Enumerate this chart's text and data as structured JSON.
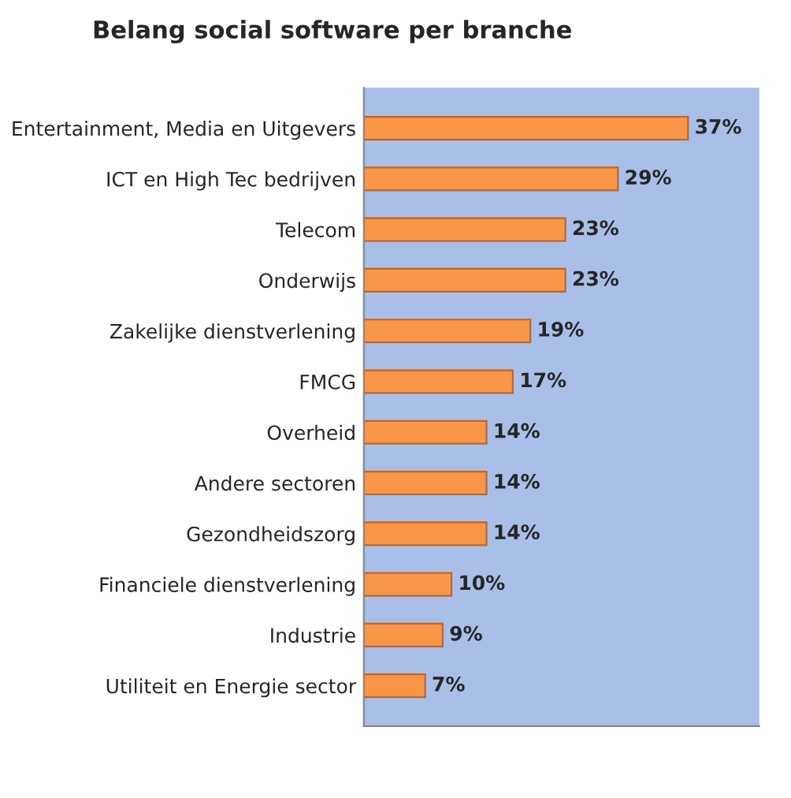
{
  "chart_data": {
    "type": "bar",
    "orientation": "horizontal",
    "title": "Belang social software per branche",
    "categories": [
      "Entertainment, Media en Uitgevers",
      "ICT en High Tec bedrijven",
      "Telecom",
      "Onderwijs",
      "Zakelijke dienstverlening",
      "FMCG",
      "Overheid",
      "Andere sectoren",
      "Gezondheidszorg",
      "Financiele dienstverlening",
      "Industrie",
      "Utiliteit en Energie sector"
    ],
    "values": [
      37,
      29,
      23,
      23,
      19,
      17,
      14,
      14,
      14,
      10,
      9,
      7
    ],
    "value_labels": [
      "37%",
      "29%",
      "23%",
      "23%",
      "19%",
      "17%",
      "14%",
      "14%",
      "14%",
      "10%",
      "9%",
      "7%"
    ],
    "color": "#f79646",
    "grid": false,
    "tick_labels": "y"
  }
}
